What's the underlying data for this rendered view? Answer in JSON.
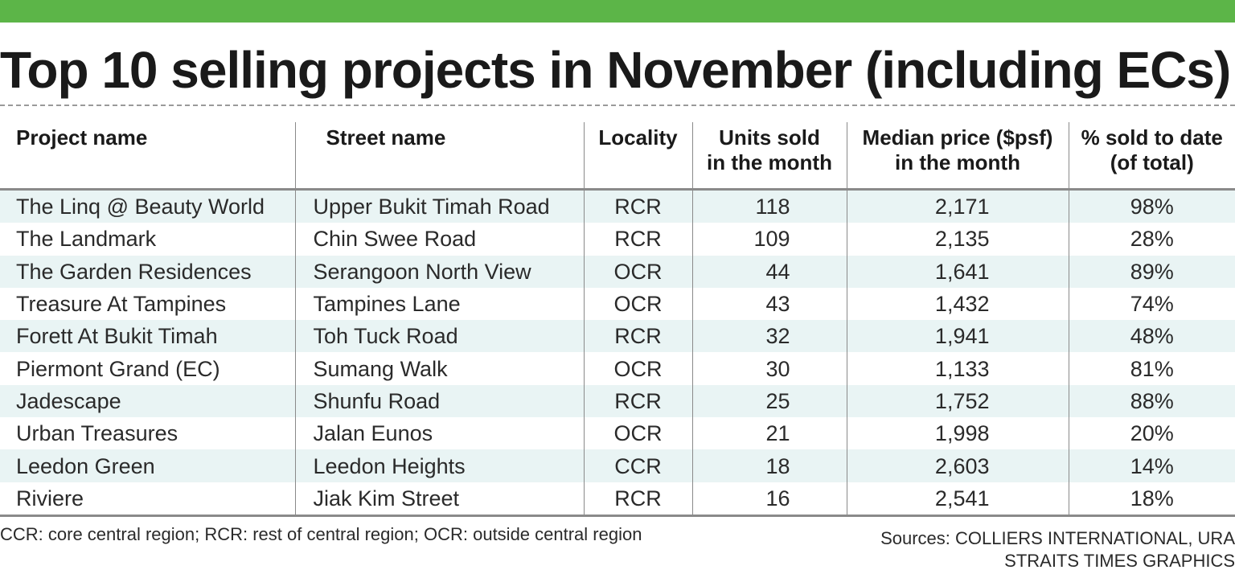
{
  "title": "Top 10 selling projects in November (including ECs)",
  "colors": {
    "accent_bar": "#5cb548",
    "row_stripe": "#e9f4f4"
  },
  "table": {
    "headers": {
      "project": "Project name",
      "street": "Street name",
      "locality": "Locality",
      "units_line1": "Units sold",
      "units_line2": "in the month",
      "price_line1": "Median price ($psf)",
      "price_line2": "in the month",
      "pct_line1": "% sold to date",
      "pct_line2": "(of total)"
    },
    "rows": [
      {
        "project": "The Linq @ Beauty World",
        "street": "Upper Bukit Timah Road",
        "locality": "RCR",
        "units": "118",
        "price": "2,171",
        "pct": "98%"
      },
      {
        "project": "The Landmark",
        "street": "Chin Swee Road",
        "locality": "RCR",
        "units": "109",
        "price": "2,135",
        "pct": "28%"
      },
      {
        "project": "The Garden Residences",
        "street": "Serangoon North View",
        "locality": "OCR",
        "units": "44",
        "price": "1,641",
        "pct": "89%"
      },
      {
        "project": "Treasure At Tampines",
        "street": "Tampines Lane",
        "locality": "OCR",
        "units": "43",
        "price": "1,432",
        "pct": "74%"
      },
      {
        "project": "Forett At Bukit Timah",
        "street": "Toh Tuck Road",
        "locality": "RCR",
        "units": "32",
        "price": "1,941",
        "pct": "48%"
      },
      {
        "project": "Piermont Grand (EC)",
        "street": "Sumang Walk",
        "locality": "OCR",
        "units": "30",
        "price": "1,133",
        "pct": "81%"
      },
      {
        "project": "Jadescape",
        "street": "Shunfu Road",
        "locality": "RCR",
        "units": "25",
        "price": "1,752",
        "pct": "88%"
      },
      {
        "project": "Urban Treasures",
        "street": "Jalan Eunos",
        "locality": "OCR",
        "units": "21",
        "price": "1,998",
        "pct": "20%"
      },
      {
        "project": "Leedon Green",
        "street": "Leedon Heights",
        "locality": "CCR",
        "units": "18",
        "price": "2,603",
        "pct": "14%"
      },
      {
        "project": "Riviere",
        "street": "Jiak Kim Street",
        "locality": "RCR",
        "units": "16",
        "price": "2,541",
        "pct": "18%"
      }
    ]
  },
  "footer": {
    "note": "CCR: core central region; RCR: rest of central region; OCR: outside central region",
    "sources": "Sources: COLLIERS INTERNATIONAL, URA",
    "credit": "STRAITS TIMES GRAPHICS"
  }
}
